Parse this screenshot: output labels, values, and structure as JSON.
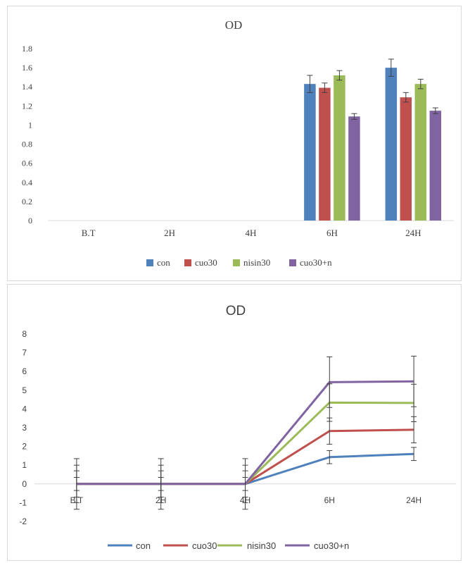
{
  "colors": {
    "con": "#4f81bd",
    "cuo30": "#c0504d",
    "nisin30": "#9bbb59",
    "cuo30n": "#8064a2"
  },
  "chart_data": [
    {
      "type": "bar",
      "title": "OD",
      "categories": [
        "B.T",
        "2H",
        "4H",
        "6H",
        "24H"
      ],
      "ylim": [
        0,
        1.8
      ],
      "yticks": [
        "0",
        "0.2",
        "0.4",
        "0.6",
        "0.8",
        "1",
        "1.2",
        "1.4",
        "1.6",
        "1.8"
      ],
      "legend_position": "bottom",
      "grid": false,
      "series": [
        {
          "name": "con",
          "values": [
            0,
            0,
            0,
            1.43,
            1.6
          ],
          "errors": [
            0,
            0,
            0,
            0.09,
            0.09
          ]
        },
        {
          "name": "cuo30",
          "values": [
            0,
            0,
            0,
            1.39,
            1.29
          ],
          "errors": [
            0,
            0,
            0,
            0.05,
            0.05
          ]
        },
        {
          "name": "nisin30",
          "values": [
            0,
            0,
            0,
            1.52,
            1.43
          ],
          "errors": [
            0,
            0,
            0,
            0.05,
            0.05
          ]
        },
        {
          "name": "cuo30+n",
          "values": [
            0,
            0,
            0,
            1.09,
            1.15
          ],
          "errors": [
            0,
            0,
            0,
            0.03,
            0.03
          ]
        }
      ]
    },
    {
      "type": "line",
      "title": "OD",
      "categories": [
        "B.T",
        "2H",
        "4H",
        "6H",
        "24H"
      ],
      "ylim": [
        -2,
        8
      ],
      "yticks": [
        "-2",
        "-1",
        "0",
        "1",
        "2",
        "3",
        "4",
        "5",
        "6",
        "7",
        "8"
      ],
      "legend_position": "bottom",
      "grid": false,
      "series": [
        {
          "name": "con",
          "values": [
            0,
            0,
            0,
            1.43,
            1.6
          ],
          "errors": [
            0.35,
            0.35,
            0.35,
            0.35,
            0.35
          ]
        },
        {
          "name": "cuo30",
          "values": [
            0,
            0,
            0,
            2.82,
            2.89
          ],
          "errors": [
            0.7,
            0.7,
            0.7,
            0.7,
            0.7
          ]
        },
        {
          "name": "nisin30",
          "values": [
            0,
            0,
            0,
            4.34,
            4.32
          ],
          "errors": [
            1.0,
            1.0,
            1.0,
            1.0,
            1.0
          ]
        },
        {
          "name": "cuo30+n",
          "values": [
            0,
            0,
            0,
            5.43,
            5.47
          ],
          "errors": [
            1.35,
            1.35,
            1.35,
            1.35,
            1.35
          ]
        }
      ]
    }
  ]
}
